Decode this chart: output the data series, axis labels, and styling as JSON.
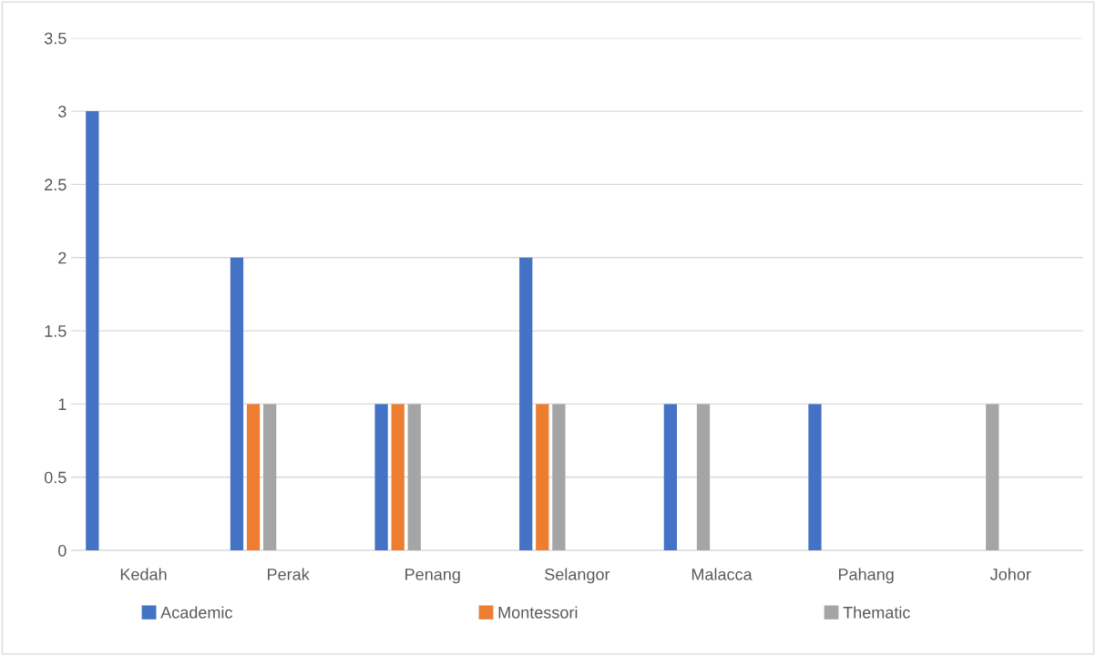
{
  "chart_data": {
    "type": "bar",
    "categories": [
      "Kedah",
      "Perak",
      "Penang",
      "Selangor",
      "Malacca",
      "Pahang",
      "Johor"
    ],
    "series": [
      {
        "name": "Academic",
        "color": "#4472c4",
        "values": [
          3,
          2,
          1,
          2,
          1,
          1,
          0
        ]
      },
      {
        "name": "Montessori",
        "color": "#ed7d31",
        "values": [
          0,
          1,
          1,
          1,
          0,
          0,
          0
        ]
      },
      {
        "name": "Thematic",
        "color": "#a5a5a5",
        "values": [
          0,
          1,
          1,
          1,
          1,
          0,
          1
        ]
      }
    ],
    "ylim": [
      0,
      3.5
    ],
    "yticks": [
      0,
      0.5,
      1,
      1.5,
      2,
      2.5,
      3,
      3.5
    ],
    "grid": "y",
    "legend": "bottom"
  }
}
